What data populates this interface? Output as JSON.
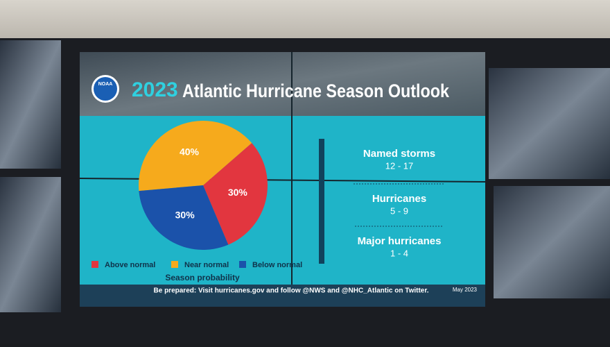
{
  "header": {
    "logo": "NOAA",
    "year": "2023",
    "title": "Atlantic Hurricane Season Outlook"
  },
  "chart_data": {
    "type": "pie",
    "caption": "Season probability",
    "categories": [
      "Above normal",
      "Near normal",
      "Below normal"
    ],
    "values": [
      30,
      40,
      30
    ],
    "value_labels": [
      "30%",
      "40%",
      "30%"
    ],
    "colors": [
      "#e2363f",
      "#f6aa1c",
      "#1b52aa"
    ]
  },
  "stats": [
    {
      "label": "Named storms",
      "range": "12 - 17"
    },
    {
      "label": "Hurricanes",
      "range": "5 - 9"
    },
    {
      "label": "Major hurricanes",
      "range": "1 - 4"
    }
  ],
  "footer": {
    "note": "Be prepared: Visit hurricanes.gov and follow @NWS and @NHC_Atlantic on Twitter.",
    "date": "May 2023"
  }
}
